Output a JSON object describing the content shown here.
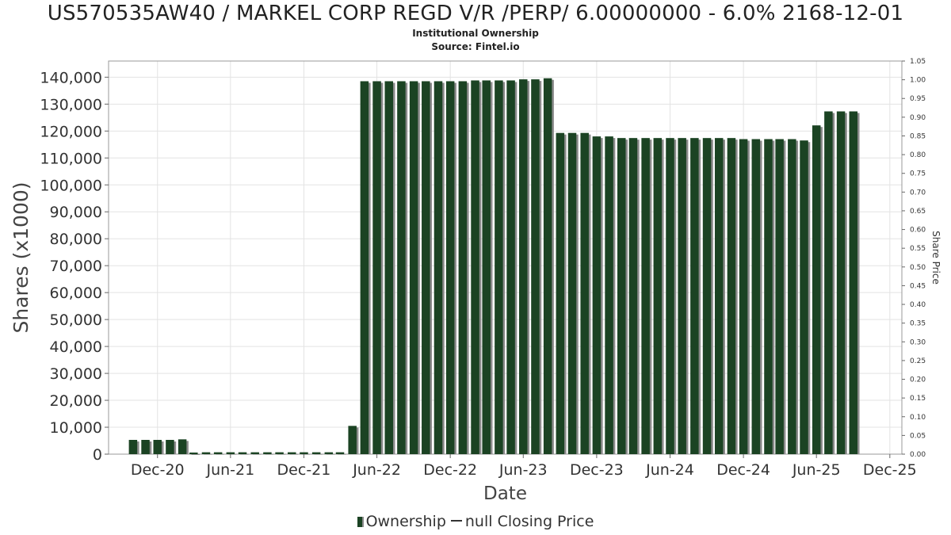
{
  "header": {
    "title": "US570535AW40 / MARKEL CORP REGD V/R /PERP/ 6.00000000 - 6.0% 2168-12-01",
    "subtitle_line1": "Institutional Ownership",
    "subtitle_line2": "Source: Fintel.io"
  },
  "legend": {
    "ownership_label": "Ownership",
    "price_label": "null Closing Price"
  },
  "chart_data": {
    "type": "bar",
    "xlabel": "Date",
    "ylabel": "Shares (x1000)",
    "y2label": "Share Price",
    "ylim": [
      0,
      146000
    ],
    "y2lim": [
      0,
      1.05
    ],
    "xlim": [
      "2020-08-01",
      "2025-12-31"
    ],
    "yticks": [
      0,
      10000,
      20000,
      30000,
      40000,
      50000,
      60000,
      70000,
      80000,
      90000,
      100000,
      110000,
      120000,
      130000,
      140000
    ],
    "ytick_labels": [
      "0",
      "10,000",
      "20,000",
      "30,000",
      "40,000",
      "50,000",
      "60,000",
      "70,000",
      "80,000",
      "90,000",
      "100,000",
      "110,000",
      "120,000",
      "130,000",
      "140,000"
    ],
    "y2ticks": [
      "0.00",
      "0.05",
      "0.10",
      "0.15",
      "0.20",
      "0.25",
      "0.30",
      "0.35",
      "0.40",
      "0.45",
      "0.50",
      "0.55",
      "0.60",
      "0.65",
      "0.70",
      "0.75",
      "0.80",
      "0.85",
      "0.90",
      "0.95",
      "1.00",
      "1.05"
    ],
    "xticks": [
      {
        "date": "2020-12-01",
        "label": "Dec-20"
      },
      {
        "date": "2021-06-01",
        "label": "Jun-21"
      },
      {
        "date": "2021-12-01",
        "label": "Dec-21"
      },
      {
        "date": "2022-06-01",
        "label": "Jun-22"
      },
      {
        "date": "2022-12-01",
        "label": "Dec-22"
      },
      {
        "date": "2023-06-01",
        "label": "Jun-23"
      },
      {
        "date": "2023-12-01",
        "label": "Dec-23"
      },
      {
        "date": "2024-06-01",
        "label": "Jun-24"
      },
      {
        "date": "2024-12-01",
        "label": "Dec-24"
      },
      {
        "date": "2025-06-01",
        "label": "Jun-25"
      },
      {
        "date": "2025-12-01",
        "label": "Dec-25"
      }
    ],
    "grid": true,
    "series": [
      {
        "name": "Ownership",
        "color": "#1b4323",
        "shadow_color": "#8a8a8a",
        "points": [
          {
            "x": "2020-10-01",
            "y": 5300
          },
          {
            "x": "2020-11-01",
            "y": 5300
          },
          {
            "x": "2020-12-01",
            "y": 5300
          },
          {
            "x": "2021-01-01",
            "y": 5300
          },
          {
            "x": "2021-02-01",
            "y": 5500
          },
          {
            "x": "2021-03-01",
            "y": 600
          },
          {
            "x": "2021-04-01",
            "y": 700
          },
          {
            "x": "2021-05-01",
            "y": 700
          },
          {
            "x": "2021-06-01",
            "y": 700
          },
          {
            "x": "2021-07-01",
            "y": 700
          },
          {
            "x": "2021-08-01",
            "y": 700
          },
          {
            "x": "2021-09-01",
            "y": 700
          },
          {
            "x": "2021-10-01",
            "y": 700
          },
          {
            "x": "2021-11-01",
            "y": 700
          },
          {
            "x": "2021-12-01",
            "y": 700
          },
          {
            "x": "2022-01-01",
            "y": 700
          },
          {
            "x": "2022-02-01",
            "y": 700
          },
          {
            "x": "2022-03-01",
            "y": 700
          },
          {
            "x": "2022-04-01",
            "y": 10500
          },
          {
            "x": "2022-05-01",
            "y": 138500
          },
          {
            "x": "2022-06-01",
            "y": 138500
          },
          {
            "x": "2022-07-01",
            "y": 138500
          },
          {
            "x": "2022-08-01",
            "y": 138500
          },
          {
            "x": "2022-09-01",
            "y": 138500
          },
          {
            "x": "2022-10-01",
            "y": 138500
          },
          {
            "x": "2022-11-01",
            "y": 138500
          },
          {
            "x": "2022-12-01",
            "y": 138500
          },
          {
            "x": "2023-01-01",
            "y": 138500
          },
          {
            "x": "2023-02-01",
            "y": 138800
          },
          {
            "x": "2023-03-01",
            "y": 138800
          },
          {
            "x": "2023-04-01",
            "y": 138800
          },
          {
            "x": "2023-05-01",
            "y": 138800
          },
          {
            "x": "2023-06-01",
            "y": 139200
          },
          {
            "x": "2023-07-01",
            "y": 139200
          },
          {
            "x": "2023-08-01",
            "y": 139600
          },
          {
            "x": "2023-09-01",
            "y": 119300
          },
          {
            "x": "2023-10-01",
            "y": 119300
          },
          {
            "x": "2023-11-01",
            "y": 119300
          },
          {
            "x": "2023-12-01",
            "y": 118000
          },
          {
            "x": "2024-01-01",
            "y": 118000
          },
          {
            "x": "2024-02-01",
            "y": 117400
          },
          {
            "x": "2024-03-01",
            "y": 117400
          },
          {
            "x": "2024-04-01",
            "y": 117400
          },
          {
            "x": "2024-05-01",
            "y": 117400
          },
          {
            "x": "2024-06-01",
            "y": 117400
          },
          {
            "x": "2024-07-01",
            "y": 117400
          },
          {
            "x": "2024-08-01",
            "y": 117400
          },
          {
            "x": "2024-09-01",
            "y": 117400
          },
          {
            "x": "2024-10-01",
            "y": 117400
          },
          {
            "x": "2024-11-01",
            "y": 117400
          },
          {
            "x": "2024-12-01",
            "y": 117000
          },
          {
            "x": "2025-01-01",
            "y": 117000
          },
          {
            "x": "2025-02-01",
            "y": 117000
          },
          {
            "x": "2025-03-01",
            "y": 117000
          },
          {
            "x": "2025-04-01",
            "y": 117000
          },
          {
            "x": "2025-05-01",
            "y": 116500
          },
          {
            "x": "2025-06-01",
            "y": 122100
          },
          {
            "x": "2025-07-01",
            "y": 127300
          },
          {
            "x": "2025-08-01",
            "y": 127300
          },
          {
            "x": "2025-09-01",
            "y": 127300
          }
        ]
      },
      {
        "name": "null Closing Price",
        "color": "#333333",
        "points": []
      }
    ]
  }
}
